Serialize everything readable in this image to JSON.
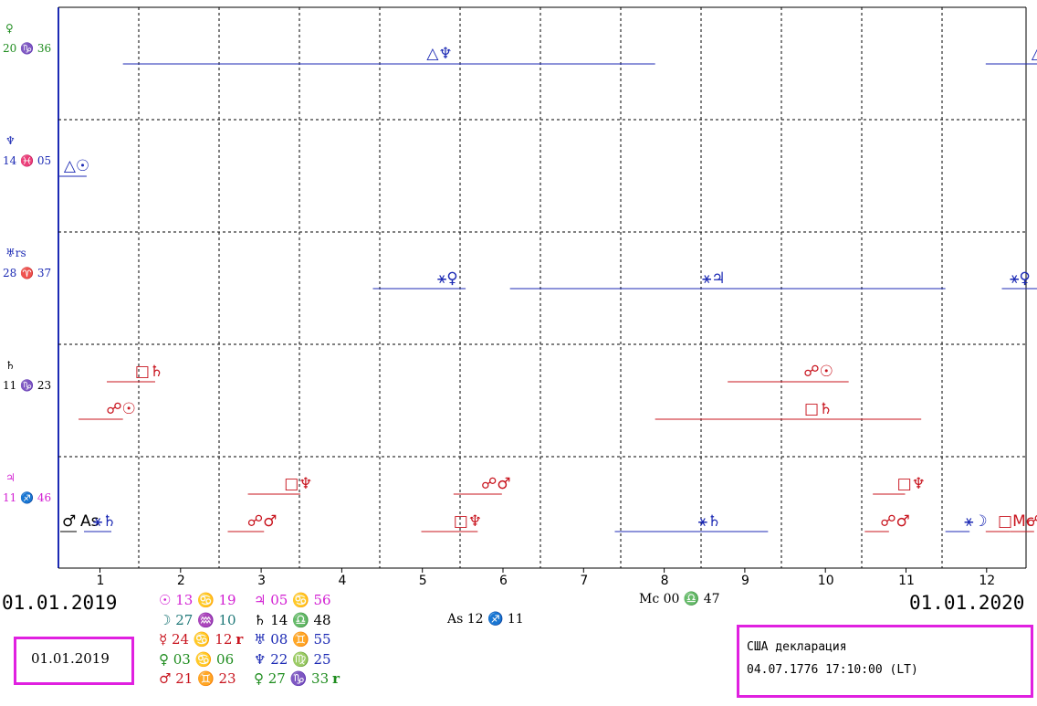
{
  "colors": {
    "blue": "#1c2ab4",
    "red": "#c8141e",
    "green": "#1e8c1e",
    "magenta": "#d21ed2",
    "black": "#000000",
    "box_border": "#e020e0",
    "teal": "#1e7878"
  },
  "rows": [
    {
      "planet": "♀",
      "position": "20 ♑ 36",
      "color": "#1e8c1e"
    },
    {
      "planet": "♆",
      "position": "14 ♓ 05",
      "color": "#1c2ab4"
    },
    {
      "planet": "♅rs",
      "position": "28 ♈ 37",
      "color": "#1c2ab4"
    },
    {
      "planet": "♄",
      "position": "11 ♑ 23",
      "color": "#000000"
    },
    {
      "planet": "♃",
      "position": "11 ♐ 46",
      "color": "#d21ed2"
    }
  ],
  "x_axis": {
    "ticks": [
      "1",
      "2",
      "3",
      "4",
      "5",
      "6",
      "7",
      "8",
      "9",
      "10",
      "11",
      "12"
    ],
    "start_date": "01.01.2019",
    "end_date": "01.01.2020"
  },
  "aspects": [
    {
      "glyph": "△♆",
      "color": "#1c2ab4",
      "start": 0.8,
      "end": 7.4,
      "mid": 4.5,
      "row": 0,
      "level": 0
    },
    {
      "glyph": "△♆",
      "color": "#1c2ab4",
      "start": 11.5,
      "end": 13.0,
      "mid": 12.0,
      "row": 0,
      "level": 0
    },
    {
      "glyph": "△☉",
      "color": "#1c2ab4",
      "start": 0.0,
      "end": 0.35,
      "mid": 0.0,
      "row": 1,
      "level": 0
    },
    {
      "glyph": "⚹♀",
      "color": "#1c2ab4",
      "start": 3.9,
      "end": 5.05,
      "mid": 4.6,
      "row": 2,
      "level": 0
    },
    {
      "glyph": "⚹♃",
      "color": "#1c2ab4",
      "start": 5.6,
      "end": 11.0,
      "mid": 7.9,
      "row": 2,
      "level": 0
    },
    {
      "glyph": "⚹♀",
      "color": "#1c2ab4",
      "start": 11.7,
      "end": 13.0,
      "mid": 11.7,
      "row": 2,
      "level": 0
    },
    {
      "glyph": "□♄",
      "color": "#c8141e",
      "start": 0.6,
      "end": 1.2,
      "mid": 0.9,
      "row": 3,
      "level": 0
    },
    {
      "glyph": "☍☉",
      "color": "#c8141e",
      "start": 0.25,
      "end": 0.8,
      "mid": 0.55,
      "row": 3,
      "level": 1
    },
    {
      "glyph": "☍☉",
      "color": "#c8141e",
      "start": 8.3,
      "end": 9.8,
      "mid": 9.2,
      "row": 3,
      "level": 0
    },
    {
      "glyph": "□♄",
      "color": "#c8141e",
      "start": 7.4,
      "end": 10.7,
      "mid": 9.2,
      "row": 3,
      "level": 1
    },
    {
      "glyph": "△",
      "color": "#1c2ab4",
      "start": 13.0,
      "end": 13.0,
      "mid": 12.6,
      "row": 3,
      "level": 1
    },
    {
      "glyph": "□♆",
      "color": "#c8141e",
      "start": 2.35,
      "end": 3.0,
      "mid": 2.75,
      "row": 4,
      "level": 0
    },
    {
      "glyph": "☍♂",
      "color": "#c8141e",
      "start": 4.9,
      "end": 5.5,
      "mid": 5.2,
      "row": 4,
      "level": 0
    },
    {
      "glyph": "□♆",
      "color": "#c8141e",
      "start": 10.1,
      "end": 10.5,
      "mid": 10.35,
      "row": 4,
      "level": 0
    },
    {
      "glyph": "☍♂",
      "color": "#c8141e",
      "start": 2.1,
      "end": 2.55,
      "mid": 2.3,
      "row": 4,
      "level": 1
    },
    {
      "glyph": "□♆",
      "color": "#c8141e",
      "start": 4.5,
      "end": 5.2,
      "mid": 4.85,
      "row": 4,
      "level": 1
    },
    {
      "glyph": "⚹♄",
      "color": "#1c2ab4",
      "start": 6.9,
      "end": 8.8,
      "mid": 7.85,
      "row": 4,
      "level": 1
    },
    {
      "glyph": "☍♂",
      "color": "#c8141e",
      "start": 10.0,
      "end": 10.3,
      "mid": 10.15,
      "row": 4,
      "level": 1
    },
    {
      "glyph": "⚹☽",
      "color": "#1c2ab4",
      "start": 11.0,
      "end": 11.3,
      "mid": 11.15,
      "row": 4,
      "level": 1
    },
    {
      "glyph": "□Mc",
      "color": "#c8141e",
      "start": 11.5,
      "end": 11.8,
      "mid": 11.65,
      "row": 4,
      "level": 1
    },
    {
      "glyph": "☍♀",
      "color": "#c8141e",
      "start": 11.8,
      "end": 12.1,
      "mid": 11.95,
      "row": 4,
      "level": 1
    },
    {
      "glyph": "☍♃",
      "color": "#c8141e",
      "start": 12.3,
      "end": 12.6,
      "mid": 12.45,
      "row": 4,
      "level": 1
    }
  ],
  "row4_extra": {
    "mars": "♂",
    "as": "As",
    "sextile_saturn": "⚹♄"
  },
  "natal_positions": [
    {
      "text": "☉ 13 ♋ 19",
      "color": "#d21ed2"
    },
    {
      "text": "☽ 27 ♒ 10",
      "color": "#1e7878"
    },
    {
      "text": "☿ 24 ♋ 12",
      "color": "#c8141e",
      "retro": "r"
    },
    {
      "text": "♀ 03 ♋ 06",
      "color": "#1e8c1e"
    },
    {
      "text": "♂ 21 ♊ 23",
      "color": "#c8141e"
    }
  ],
  "natal_positions_2": [
    {
      "text": "♃ 05 ♋ 56",
      "color": "#d21ed2"
    },
    {
      "text": "♄ 14 ♎ 48",
      "color": "#000000"
    },
    {
      "text": "♅ 08 ♊ 55",
      "color": "#1c2ab4"
    },
    {
      "text": "♆ 22 ♍ 25",
      "color": "#1c2ab4"
    },
    {
      "text": "♀ 27 ♑ 33",
      "color": "#1e8c1e",
      "retro": "r"
    }
  ],
  "mc": "Mc 00 ♎ 47",
  "as": "As 12 ♐ 11",
  "date_box": "01.01.2019",
  "info_box": {
    "line1": "США декларация",
    "line2": "04.07.1776 17:10:00 (LT)"
  }
}
